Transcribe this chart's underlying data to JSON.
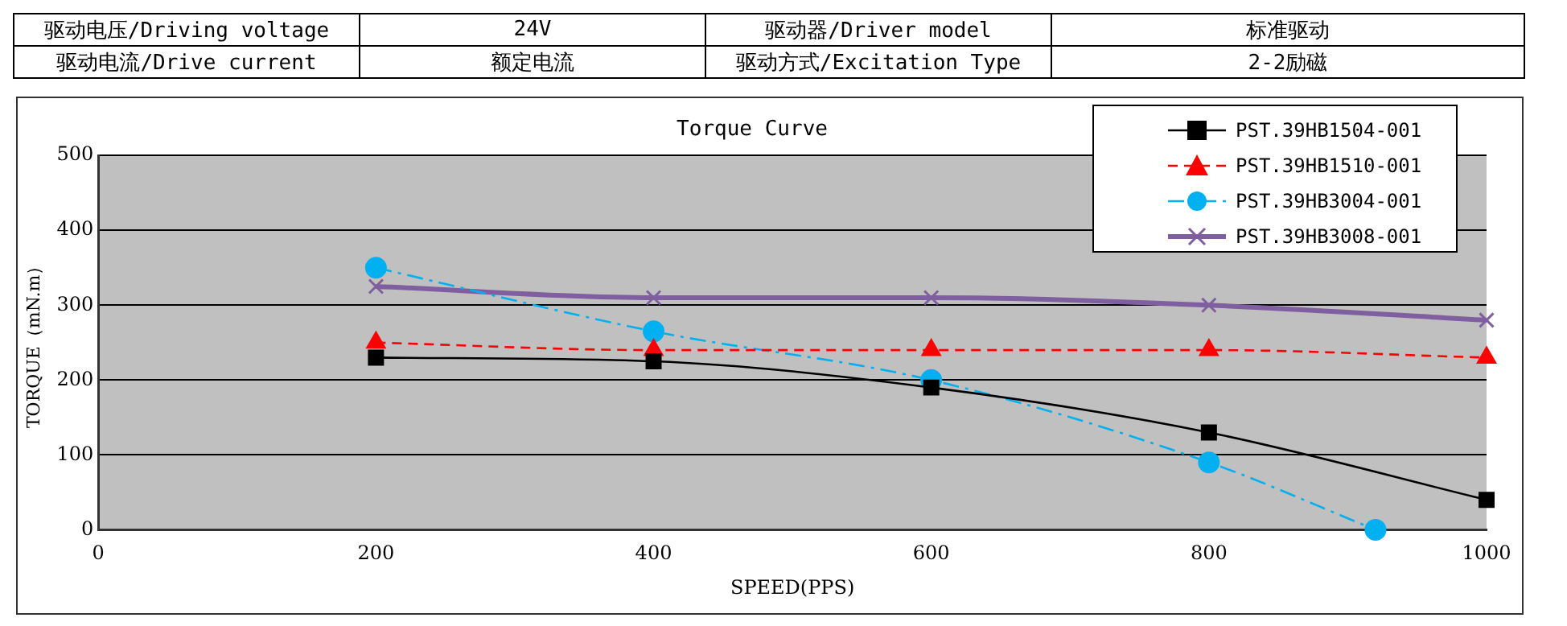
{
  "chart_data": {
    "type": "line",
    "title": "Torque Curve",
    "xlabel": "SPEED(PPS)",
    "ylabel": "TORQUE（mN.m）",
    "annotations": [
      "驱动电压/Driving voltage",
      "24V",
      "驱动器/Driver model",
      "标准驱动",
      "驱动电流/Drive current",
      "额定电流",
      "驱动方式/Excitation Type",
      "2-2励磁"
    ],
    "xlim": [
      0,
      1000
    ],
    "xticks": [
      0,
      200,
      400,
      600,
      800,
      1000
    ],
    "ylim": [
      0,
      500
    ],
    "yticks": [
      0,
      100,
      200,
      300,
      400,
      500
    ],
    "grid": "y",
    "legend": "top right",
    "series": [
      {
        "name": "PST.39HB1504-001",
        "color": "#000000",
        "marker": "square",
        "line_style": "solid",
        "x": [
          200,
          400,
          600,
          800,
          1000
        ],
        "values": [
          230,
          225,
          190,
          130,
          40
        ]
      },
      {
        "name": "PST.39HB1510-001",
        "color": "#ff0000",
        "marker": "triangle",
        "line_style": "dashed",
        "x": [
          200,
          400,
          600,
          800,
          1000
        ],
        "values": [
          250,
          240,
          240,
          240,
          230
        ]
      },
      {
        "name": "PST.39HB3004-001",
        "color": "#00b0f0",
        "marker": "circle",
        "line_style": "dashdot",
        "x": [
          200,
          400,
          600,
          800,
          920
        ],
        "values": [
          350,
          265,
          200,
          90,
          0
        ]
      },
      {
        "name": "PST.39HB3008-001",
        "color": "#7f5fa0",
        "marker": "cross",
        "line_style": "solid",
        "x": [
          200,
          400,
          600,
          800,
          1000
        ],
        "values": [
          325,
          310,
          310,
          300,
          280
        ]
      }
    ]
  }
}
